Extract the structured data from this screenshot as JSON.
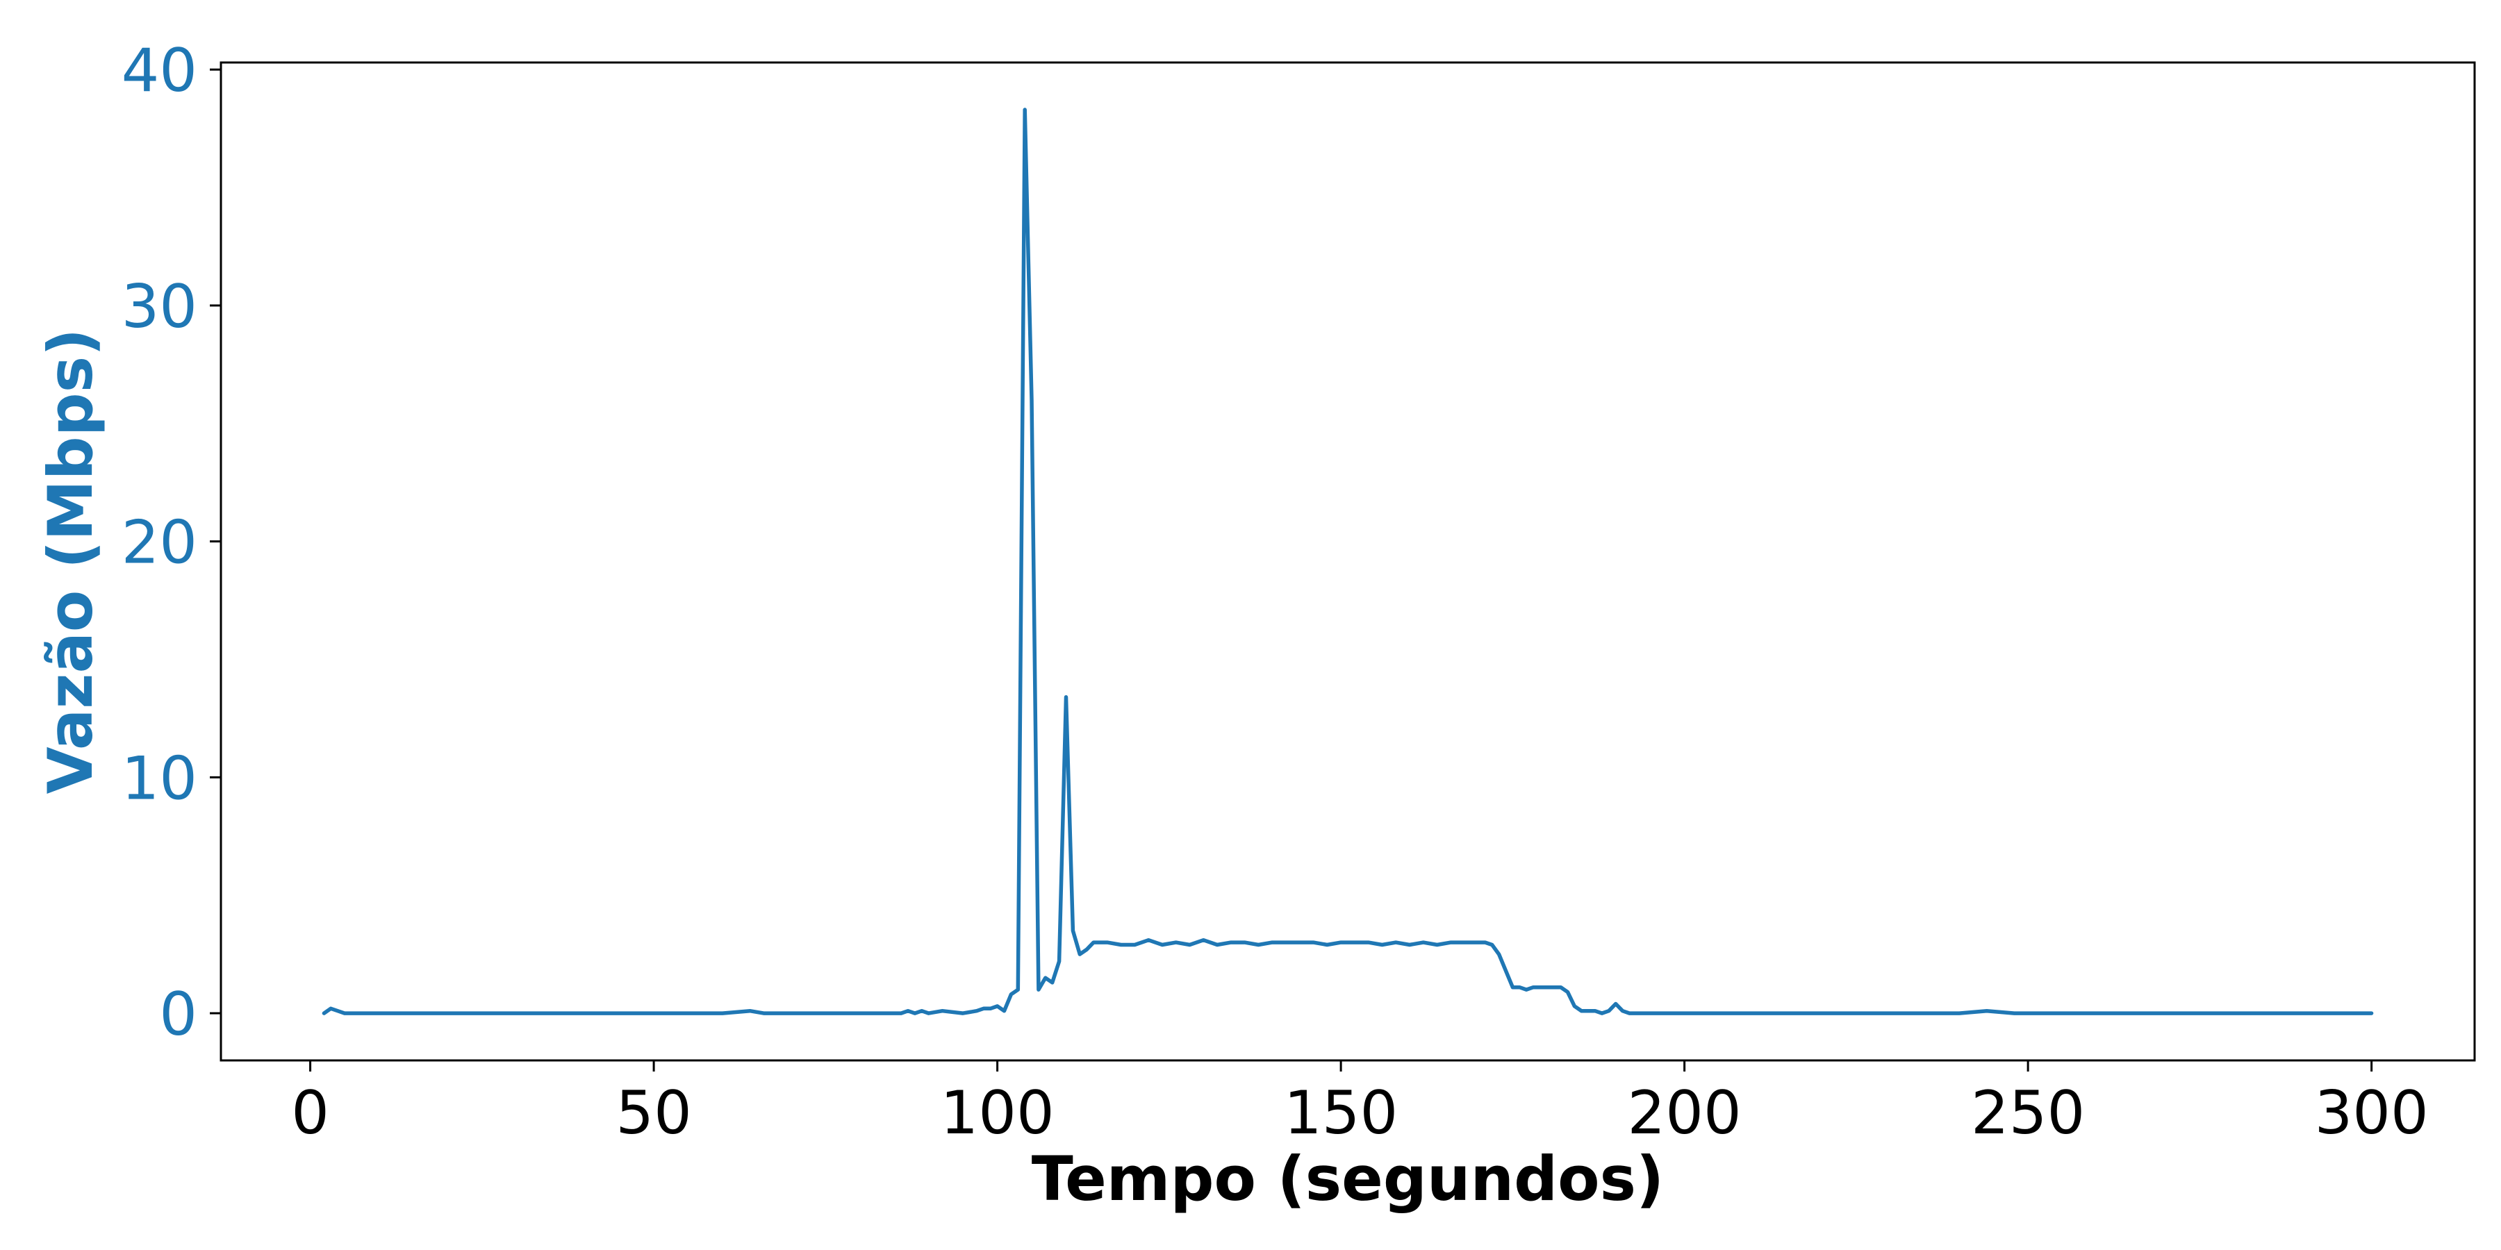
{
  "chart_data": {
    "type": "line",
    "title": "",
    "xlabel": "Tempo (segundos)",
    "ylabel": "Vazão (Mbps)",
    "xlim": [
      -13,
      315
    ],
    "ylim": [
      -2,
      40.3
    ],
    "xticks": [
      0,
      50,
      100,
      150,
      200,
      250,
      300
    ],
    "yticks": [
      0,
      10,
      20,
      30,
      40
    ],
    "grid": false,
    "legend": "none",
    "colors": {
      "series": "#1f77b4",
      "ylabel": "#1f77b4",
      "axis_text": "#000000",
      "frame": "#000000"
    },
    "series": [
      {
        "color": "#1f77b4",
        "x": [
          2,
          3,
          4,
          5,
          10,
          20,
          30,
          40,
          50,
          60,
          64,
          66,
          70,
          80,
          86,
          87,
          88,
          89,
          90,
          92,
          95,
          97,
          98,
          99,
          100,
          101,
          102,
          103,
          104,
          105,
          106,
          107,
          108,
          109,
          110,
          111,
          112,
          113,
          114,
          115,
          116,
          118,
          120,
          122,
          124,
          126,
          128,
          130,
          132,
          134,
          136,
          138,
          140,
          142,
          144,
          146,
          148,
          150,
          152,
          154,
          156,
          158,
          160,
          162,
          164,
          166,
          168,
          170,
          171,
          172,
          173,
          174,
          175,
          176,
          177,
          178,
          180,
          182,
          183,
          184,
          185,
          186,
          187,
          188,
          189,
          190,
          191,
          192,
          195,
          200,
          210,
          220,
          230,
          240,
          244,
          248,
          260,
          270,
          280,
          290,
          300
        ],
        "y": [
          0,
          0.2,
          0.1,
          0,
          0,
          0,
          0,
          0,
          0,
          0,
          0.1,
          0,
          0,
          0,
          0,
          0.1,
          0,
          0.1,
          0,
          0.1,
          0,
          0.1,
          0.2,
          0.2,
          0.3,
          0.1,
          0.8,
          1.0,
          38.3,
          26.0,
          1.0,
          1.5,
          1.3,
          2.2,
          13.4,
          3.5,
          2.5,
          2.7,
          3.0,
          3.0,
          3.0,
          2.9,
          2.9,
          3.1,
          2.9,
          3.0,
          2.9,
          3.1,
          2.9,
          3.0,
          3.0,
          2.9,
          3.0,
          3.0,
          3.0,
          3.0,
          2.9,
          3.0,
          3.0,
          3.0,
          2.9,
          3.0,
          2.9,
          3.0,
          2.9,
          3.0,
          3.0,
          3.0,
          3.0,
          2.9,
          2.5,
          1.8,
          1.1,
          1.1,
          1.0,
          1.1,
          1.1,
          1.1,
          0.9,
          0.3,
          0.1,
          0.1,
          0.1,
          0,
          0.1,
          0.4,
          0.1,
          0,
          0,
          0,
          0,
          0,
          0,
          0,
          0.1,
          0,
          0,
          0,
          0,
          0,
          0
        ]
      }
    ]
  }
}
